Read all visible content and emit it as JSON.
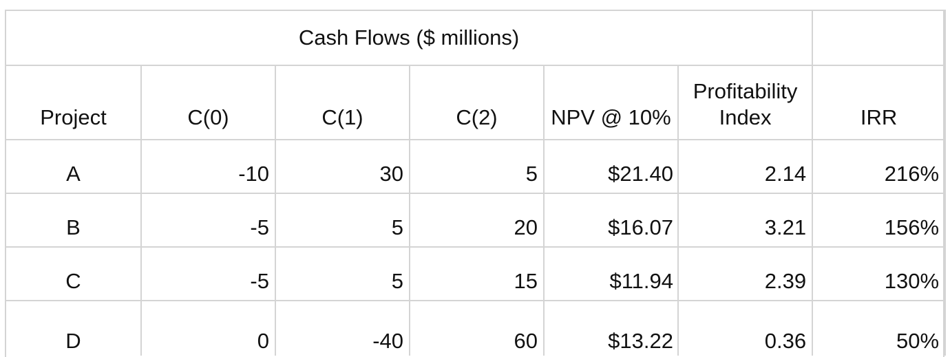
{
  "table": {
    "group_header": "Cash Flows ($ millions)",
    "columns": [
      "Project",
      "C(0)",
      "C(1)",
      "C(2)",
      "NPV @ 10%",
      "Profitability Index",
      "IRR"
    ],
    "rows": [
      {
        "project": "A",
        "c0": "-10",
        "c1": "30",
        "c2": "5",
        "npv": "$21.40",
        "pi": "2.14",
        "irr": "216%"
      },
      {
        "project": "B",
        "c0": "-5",
        "c1": "5",
        "c2": "20",
        "npv": "$16.07",
        "pi": "3.21",
        "irr": "156%"
      },
      {
        "project": "C",
        "c0": "-5",
        "c1": "5",
        "c2": "15",
        "npv": "$11.94",
        "pi": "2.39",
        "irr": "130%"
      },
      {
        "project": "D",
        "c0": "0",
        "c1": "-40",
        "c2": "60",
        "npv": "$13.22",
        "pi": "0.36",
        "irr": "50%"
      }
    ]
  }
}
